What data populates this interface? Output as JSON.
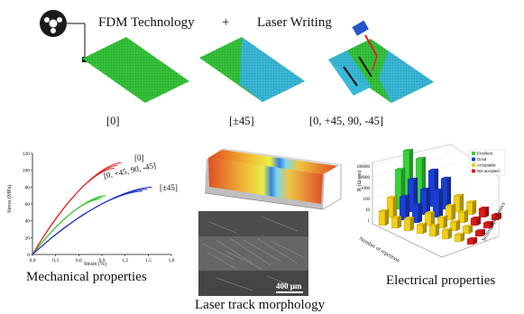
{
  "header": {
    "fdm": "FDM Technology",
    "plus": "+",
    "laser": "Laser Writing"
  },
  "patterns": {
    "p1": "[0]",
    "p2": "[±45]",
    "p3": "[0, +45, 90, -45]"
  },
  "captions": {
    "mechanical": "Mechanical properties",
    "morphology": "Laser track morphology",
    "electrical": "Electrical properties"
  },
  "colors": {
    "green": "#35c43a",
    "cyan": "#39b9d9",
    "red": "#e32020",
    "blue": "#1f2fbf"
  },
  "sem": {
    "scale": "400 µm"
  },
  "chart_data": [
    {
      "type": "line",
      "title": "",
      "xlabel": "Strain (%)",
      "ylabel": "Stress (MPa)",
      "xlim": [
        0,
        1.8
      ],
      "ylim": [
        0,
        120
      ],
      "x_ticks": [
        "0,0",
        "0,3",
        "0,6",
        "0,9",
        "1,2",
        "1,5",
        "1,8"
      ],
      "y_ticks": [
        "0",
        "20",
        "40",
        "60",
        "80",
        "100",
        "120"
      ],
      "grid": false,
      "series": [
        {
          "name": "[0]",
          "color": "#e32020",
          "end_strain": 1.15,
          "end_stress": 109
        },
        {
          "name": "[0, +45, 90, -45]",
          "color": "#35c43a",
          "end_strain": 0.95,
          "end_stress": 70
        },
        {
          "name": "[±45]",
          "color": "#1f2fbf",
          "end_strain": 1.55,
          "end_stress": 80
        }
      ]
    },
    {
      "type": "bar",
      "title": "",
      "zlabel": "R (Ω/cm)",
      "xlabel": "Number of repetition",
      "ylabel": "Writing speed mm/s",
      "z_scale": "log",
      "z_ticks": [
        "1",
        "10",
        "100",
        "1000",
        "10000",
        "100000"
      ],
      "legend": [
        "Excellent",
        "Good",
        "Acceptable",
        "Not accepted"
      ],
      "legend_colors": [
        "#37d43a",
        "#1b3fd6",
        "#f3d017",
        "#e01a1a"
      ],
      "legend_position": "top-left"
    }
  ]
}
